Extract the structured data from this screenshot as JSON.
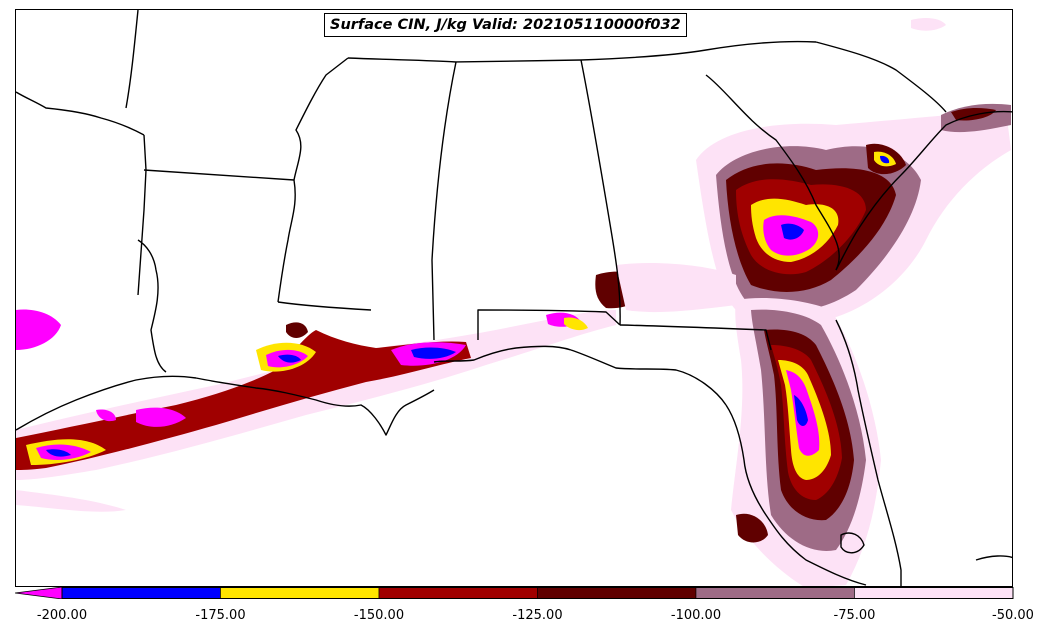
{
  "title": "Surface CIN, J/kg Valid: 202105110000f032",
  "colorbar": {
    "ticks": [
      "-200.00",
      "-175.00",
      "-150.00",
      "-125.00",
      "-100.00",
      "-75.00",
      "-50.00"
    ],
    "bins": [
      {
        "from": -200,
        "to": -175,
        "color": "#0000ff"
      },
      {
        "from": -175,
        "to": -150,
        "color": "#ffe500"
      },
      {
        "from": -150,
        "to": -125,
        "color": "#a00000"
      },
      {
        "from": -125,
        "to": -100,
        "color": "#600000"
      },
      {
        "from": -100,
        "to": -75,
        "color": "#9e6b86"
      },
      {
        "from": -75,
        "to": -50,
        "color": "#fde2f6"
      }
    ],
    "under_color": "#ff00ff"
  }
}
